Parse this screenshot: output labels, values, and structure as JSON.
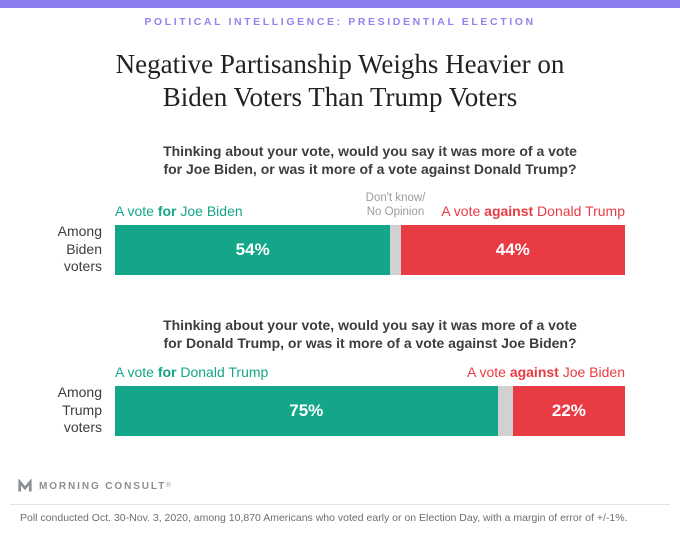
{
  "page": {
    "eyebrow": "POLITICAL INTELLIGENCE: PRESIDENTIAL ELECTION",
    "title_line1": "Negative Partisanship Weighs Heavier on",
    "title_line2": "Biden Voters Than Trump Voters"
  },
  "colors": {
    "accent_purple": "#8a7bf1",
    "green": "#13a689",
    "red": "#e83b43",
    "neutral_gray": "#d1d1d1"
  },
  "charts": [
    {
      "question_line1": "Thinking about your vote, would you say it was more of a vote",
      "question_line2": "for Joe Biden, or was it more of a vote against Donald Trump?",
      "row_label_line1": "Among",
      "row_label_line2": "Biden",
      "row_label_line3": "voters",
      "left_label_pre": "A vote ",
      "left_label_bold": "for",
      "left_label_post": " Joe Biden",
      "dk_label_line1": "Don't know/",
      "dk_label_line2": "No Opinion",
      "right_label_pre": "A vote ",
      "right_label_bold": "against",
      "right_label_post": " Donald Trump",
      "for_value": 54,
      "for_label": "54%",
      "dk_value": 2,
      "against_value": 44,
      "against_label": "44%"
    },
    {
      "question_line1": "Thinking about your vote, would you say it was more of a vote",
      "question_line2": "for Donald Trump, or was it more of a vote against Joe Biden?",
      "row_label_line1": "Among",
      "row_label_line2": "Trump",
      "row_label_line3": "voters",
      "left_label_pre": "A vote ",
      "left_label_bold": "for",
      "left_label_post": " Donald Trump",
      "right_label_pre": "A vote ",
      "right_label_bold": "against",
      "right_label_post": " Joe Biden",
      "for_value": 75,
      "for_label": "75%",
      "dk_value": 3,
      "against_value": 22,
      "against_label": "22%"
    }
  ],
  "footer": {
    "logo_text": "MORNING CONSULT",
    "logo_mark": "®",
    "footnote": "Poll conducted Oct. 30-Nov. 3, 2020, among 10,870 Americans who voted early or on Election Day, with a margin of error of +/-1%."
  },
  "chart_data": [
    {
      "type": "bar",
      "subtype": "horizontal-stacked",
      "title": "Thinking about your vote, would you say it was more of a vote for Joe Biden, or was it more of a vote against Donald Trump?",
      "categories": [
        "Among Biden voters"
      ],
      "series": [
        {
          "name": "A vote for Joe Biden",
          "values": [
            54
          ],
          "color": "#13a689"
        },
        {
          "name": "Don't know/No Opinion",
          "values": [
            2
          ],
          "color": "#d1d1d1"
        },
        {
          "name": "A vote against Donald Trump",
          "values": [
            44
          ],
          "color": "#e83b43"
        }
      ],
      "xlim": [
        0,
        100
      ],
      "grid": false,
      "legend_position": "above-bar-ends",
      "data_labels": [
        "54%",
        "44%"
      ]
    },
    {
      "type": "bar",
      "subtype": "horizontal-stacked",
      "title": "Thinking about your vote, would you say it was more of a vote for Donald Trump, or was it more of a vote against Joe Biden?",
      "categories": [
        "Among Trump voters"
      ],
      "series": [
        {
          "name": "A vote for Donald Trump",
          "values": [
            75
          ],
          "color": "#13a689"
        },
        {
          "name": "Don't know/No Opinion",
          "values": [
            3
          ],
          "color": "#d1d1d1"
        },
        {
          "name": "A vote against Joe Biden",
          "values": [
            22
          ],
          "color": "#e83b43"
        }
      ],
      "xlim": [
        0,
        100
      ],
      "grid": false,
      "legend_position": "above-bar-ends",
      "data_labels": [
        "75%",
        "22%"
      ]
    }
  ]
}
